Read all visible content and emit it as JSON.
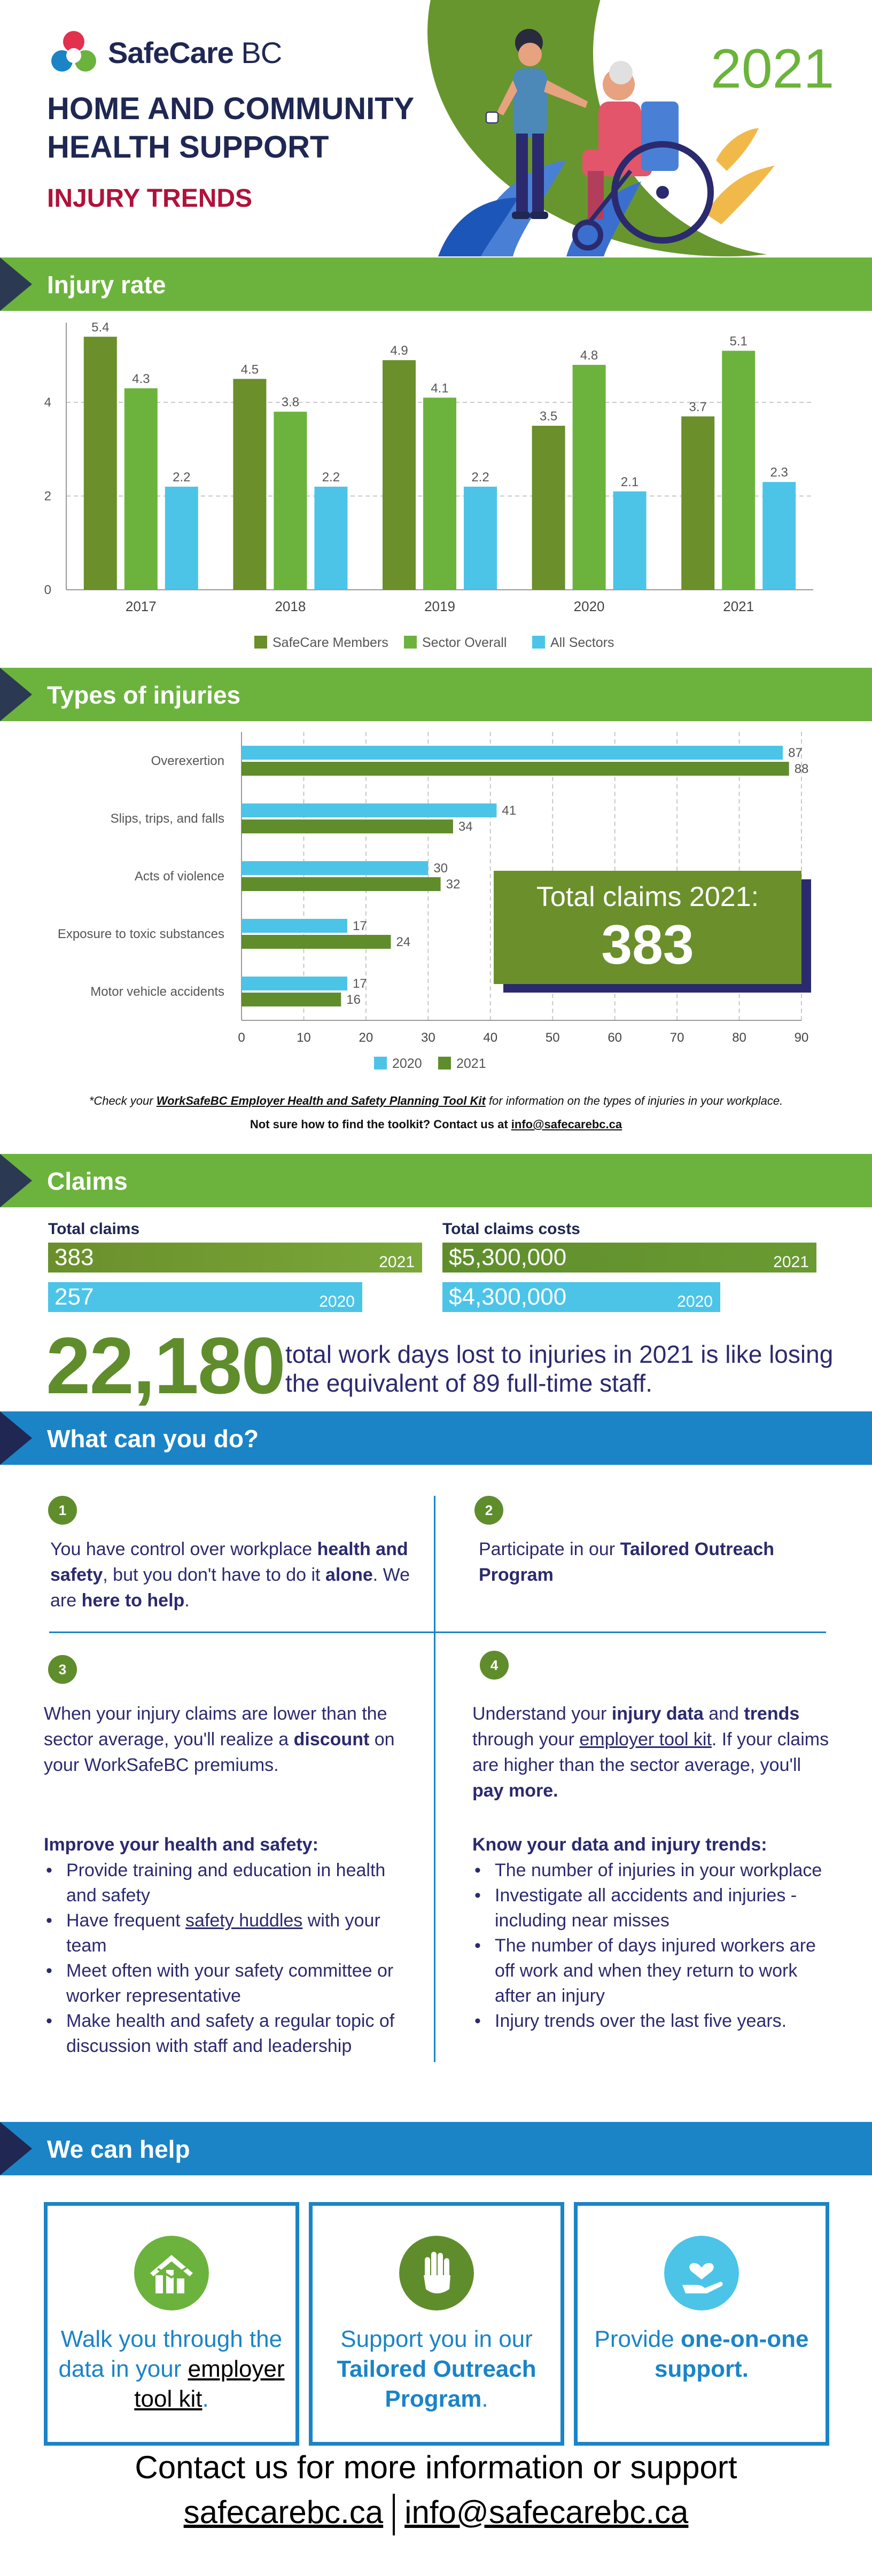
{
  "header": {
    "logo": "SafeCare",
    "logo_suffix": "BC",
    "title": "HOME AND COMMUNITY HEALTH SUPPORT",
    "subtitle": "INJURY TRENDS",
    "year": "2021"
  },
  "sections": {
    "injury_rate": "Injury rate",
    "types": "Types of injuries",
    "claims": "Claims",
    "what_can_you_do": "What can you do?",
    "we_can_help": "We can help"
  },
  "chart_data": [
    {
      "type": "bar",
      "categories": [
        "2017",
        "2018",
        "2019",
        "2020",
        "2021"
      ],
      "series": [
        {
          "name": "SafeCare Members",
          "values": [
            5.4,
            4.5,
            4.9,
            3.5,
            3.7
          ],
          "color": "#6a8f2b"
        },
        {
          "name": "Sector Overall",
          "values": [
            4.3,
            3.8,
            4.1,
            4.8,
            5.1
          ],
          "color": "#6cb33e"
        },
        {
          "name": "All Sectors",
          "values": [
            2.2,
            2.2,
            2.2,
            2.1,
            2.3
          ],
          "color": "#4cc4e8"
        }
      ],
      "yticks": [
        "0",
        "2",
        "4"
      ],
      "ylim": [
        0,
        5.7
      ],
      "grid": true,
      "legend": "bottom"
    },
    {
      "type": "bar",
      "orientation": "horizontal",
      "categories": [
        "Overexertion",
        "Slips, trips, and falls",
        "Acts of violence",
        "Exposure to toxic substances",
        "Motor vehicle accidents"
      ],
      "series": [
        {
          "name": "2020",
          "values": [
            87,
            41,
            30,
            17,
            17
          ],
          "color": "#4cc4e8"
        },
        {
          "name": "2021",
          "values": [
            88,
            34,
            32,
            24,
            16
          ],
          "color": "#5f8d2c"
        }
      ],
      "xticks": [
        "0",
        "10",
        "20",
        "30",
        "40",
        "50",
        "60",
        "70",
        "80",
        "90"
      ],
      "xlim": [
        0,
        90
      ],
      "grid": true,
      "legend": "bottom"
    }
  ],
  "total_claims_box": {
    "label": "Total claims 2021:",
    "value": "383"
  },
  "notes": {
    "line1_pre": "*Check your ",
    "line1_link": "WorkSafeBC Employer Health and Safety Planning Tool Kit",
    "line1_post": " for information on the types of injuries in your workplace.",
    "line2_pre": "Not sure how to find the toolkit? Contact us at ",
    "line2_link": "info@safecarebc.ca"
  },
  "claims": {
    "total_label": "Total claims",
    "cost_label": "Total claims costs",
    "claims_2021": "383",
    "claims_2020": "257",
    "cost_2021": "$5,300,000",
    "cost_2020": "$4,300,000",
    "year_2021": "2021",
    "year_2020": "2020",
    "days_lost": "22,180",
    "days_text": "total work days lost to injuries in 2021 is like losing the equivalent of 89 full-time staff."
  },
  "what_can_you_do": {
    "n1": "1",
    "n2": "2",
    "n3": "3",
    "n4": "4",
    "item1": {
      "t1": "You have  control over workplace ",
      "b1": "health and safety",
      "t2": ", but you don't have to do it ",
      "b2": "alone",
      "t3": ". We are ",
      "b3": "here to help",
      "t4": "."
    },
    "item2": {
      "t1": "Participate in our ",
      "b1": "Tailored Outreach Program"
    },
    "item3": {
      "t1": "When your injury claims are lower than the sector average, you'll realize a ",
      "b1": "discount",
      "t2": " on your WorkSafeBC premiums."
    },
    "item4": {
      "t1": "Understand your ",
      "b1": "injury data",
      "t2": " and ",
      "b2": "trends",
      "t3": " through your ",
      "u1": "employer tool kit",
      "t4": ". If your claims are higher than the sector average, you'll ",
      "b3": "pay more."
    },
    "improve_head": "Improve your health and safety:",
    "improve_1": "Provide training and education in health and safety",
    "improve_2_pre": "Have frequent ",
    "improve_2_link": "safety huddles",
    "improve_2_post": " with your team",
    "improve_3": "Meet often with your safety committee or worker representative",
    "improve_4": "Make health and safety a regular topic of discussion with staff and leadership",
    "know_head": "Know your data and injury trends:",
    "know_1": "The number of injuries in your workplace",
    "know_2": "Investigate all accidents and injuries - including near misses",
    "know_3": "The number of days injured workers are off work and when they return to work after an injury",
    "know_4": "Injury trends over the last five years."
  },
  "we_can_help": {
    "box1_pre": "Walk you through the data in your ",
    "box1_link": "employer tool kit",
    "box1_post": ".",
    "box2_pre": "Support you in our ",
    "box2_bold": "Tailored Outreach Program",
    "box2_post": ".",
    "box3_pre": "Provide ",
    "box3_bold": "one-on-one support."
  },
  "contact": {
    "line": "Contact us for more  information or support",
    "site": "safecarebc.ca",
    "email": "info@safecarebc.ca"
  },
  "colors": {
    "dark_green": "#6a8f2b",
    "green": "#6cb33e",
    "light_blue": "#4cc4e8",
    "blue": "#1a84c7",
    "navy": "#2b2a6e",
    "red": "#b0123a"
  }
}
